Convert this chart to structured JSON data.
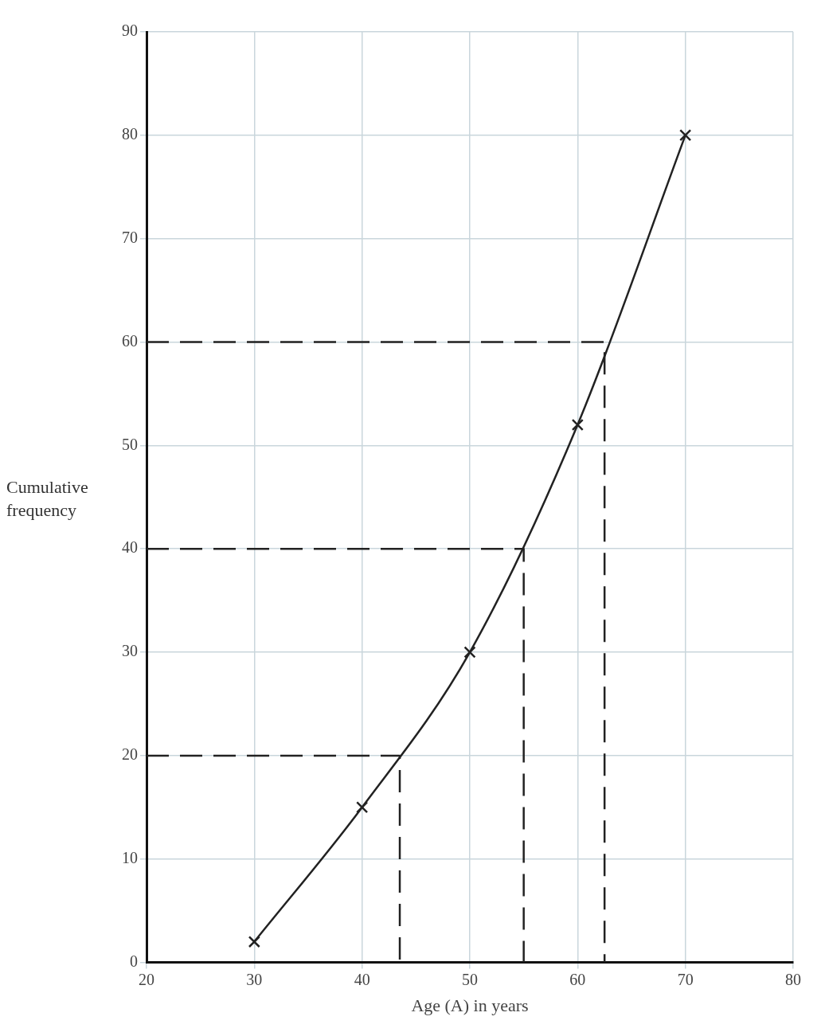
{
  "chart_data": {
    "type": "line",
    "xlabel": "Age (A) in years",
    "ylabel": "Cumulative frequency",
    "xlim": [
      20,
      80
    ],
    "xticks": [
      20,
      30,
      40,
      50,
      60,
      70,
      80
    ],
    "ylim": [
      0,
      90
    ],
    "yticks": [
      0,
      10,
      20,
      30,
      40,
      50,
      60,
      70,
      80,
      90
    ],
    "grid": true,
    "legend": false,
    "marker": "cross",
    "line_style": "solid",
    "series": [
      {
        "color": "#222222",
        "x": [
          30,
          40,
          50,
          60,
          70
        ],
        "values": [
          2,
          15,
          30,
          52,
          80
        ]
      },
      {
        "color": "#222222",
        "x": [
          20,
          43.5,
          43.5
        ],
        "values": [
          20,
          20,
          0
        ],
        "marker": "none",
        "line_style": "dashed"
      },
      {
        "color": "#222222",
        "x": [
          20,
          55,
          55
        ],
        "values": [
          40,
          40,
          0
        ],
        "marker": "none",
        "line_style": "dashed"
      },
      {
        "color": "#222222",
        "x": [
          20,
          62.5,
          62.5
        ],
        "values": [
          60,
          60,
          0
        ],
        "marker": "none",
        "line_style": "dashed"
      }
    ]
  }
}
